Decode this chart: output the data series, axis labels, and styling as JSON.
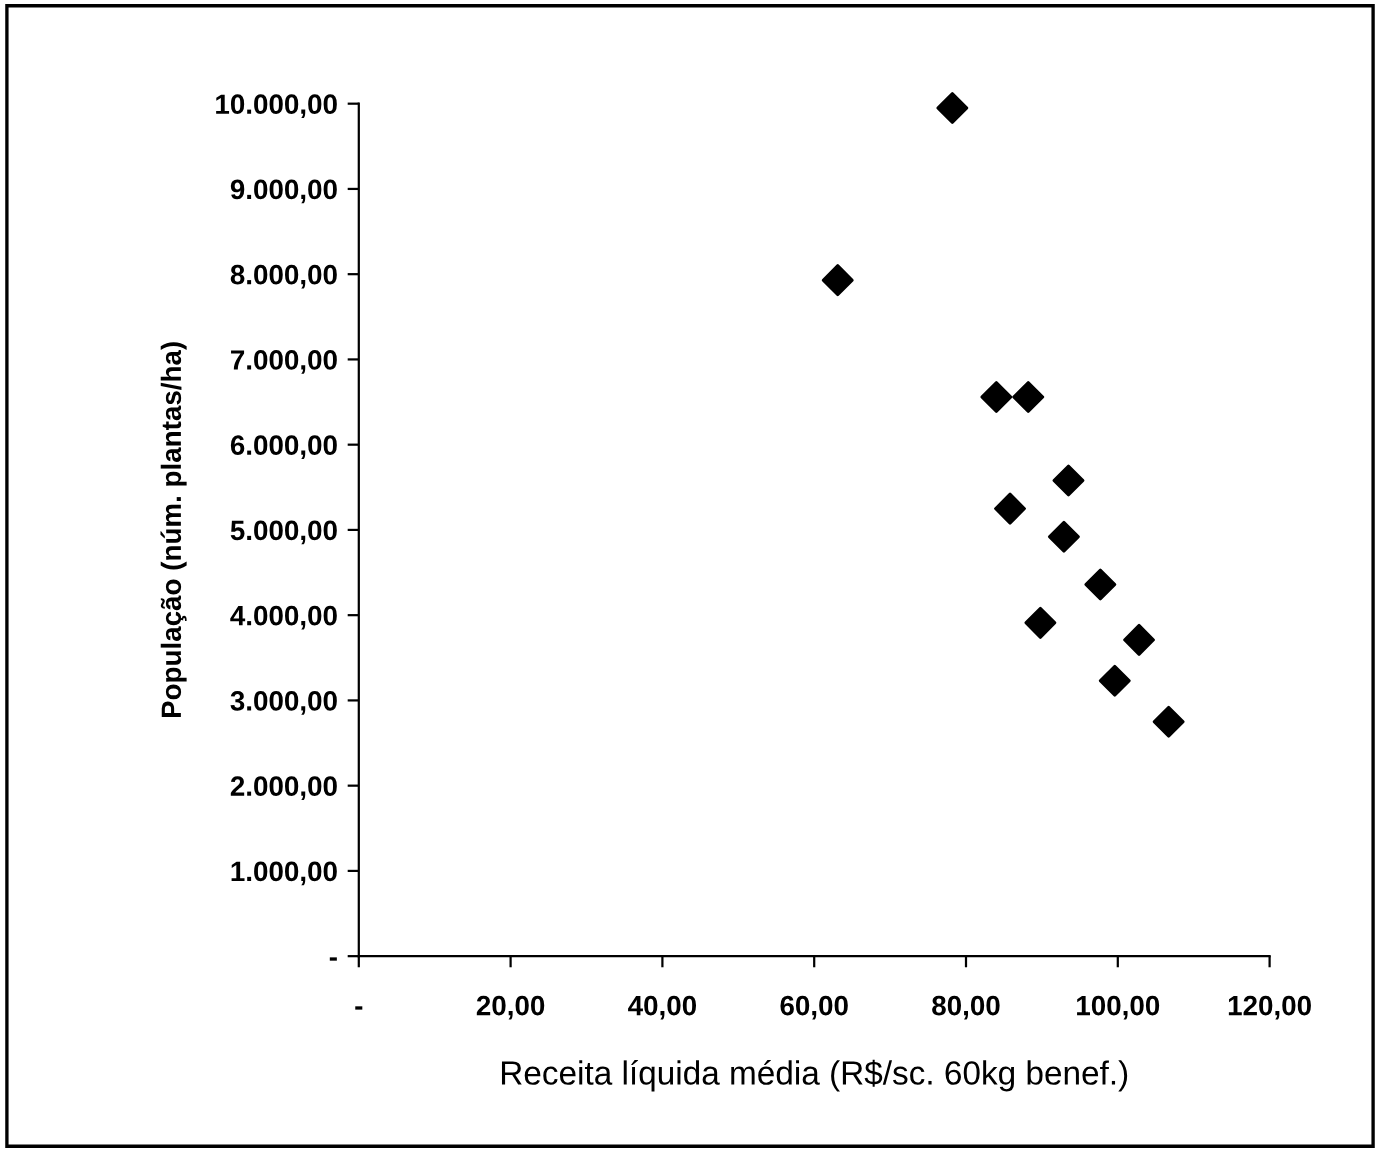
{
  "chart_data": {
    "type": "scatter",
    "xlabel": "Receita líquida média (R$/sc. 60kg benef.)",
    "ylabel": "População (núm. plantas/ha)",
    "x": [
      78.2,
      63.1,
      84.0,
      88.2,
      93.5,
      85.8,
      92.9,
      97.7,
      89.8,
      102.8,
      99.6,
      106.7
    ],
    "values": [
      9950,
      7930,
      6560,
      6560,
      5580,
      5250,
      4920,
      4360,
      3910,
      3710,
      3230,
      2750
    ],
    "color": "#000000",
    "marker": "diamond",
    "xlim": [
      0,
      120
    ],
    "xticks": [
      {
        "value": 0,
        "label": "-"
      },
      {
        "value": 20,
        "label": "20,00"
      },
      {
        "value": 40,
        "label": "40,00"
      },
      {
        "value": 60,
        "label": "60,00"
      },
      {
        "value": 80,
        "label": "80,00"
      },
      {
        "value": 100,
        "label": "100,00"
      },
      {
        "value": 120,
        "label": "120,00"
      }
    ],
    "ylim": [
      0,
      10000
    ],
    "yticks": [
      {
        "value": 0,
        "label": "-"
      },
      {
        "value": 1000,
        "label": "1.000,00"
      },
      {
        "value": 2000,
        "label": "2.000,00"
      },
      {
        "value": 3000,
        "label": "3.000,00"
      },
      {
        "value": 4000,
        "label": "4.000,00"
      },
      {
        "value": 5000,
        "label": "5.000,00"
      },
      {
        "value": 6000,
        "label": "6.000,00"
      },
      {
        "value": 7000,
        "label": "7.000,00"
      },
      {
        "value": 8000,
        "label": "8.000,00"
      },
      {
        "value": 9000,
        "label": "9.000,00"
      },
      {
        "value": 10000,
        "label": "10.000,00"
      }
    ],
    "grid": false,
    "legend": false
  }
}
